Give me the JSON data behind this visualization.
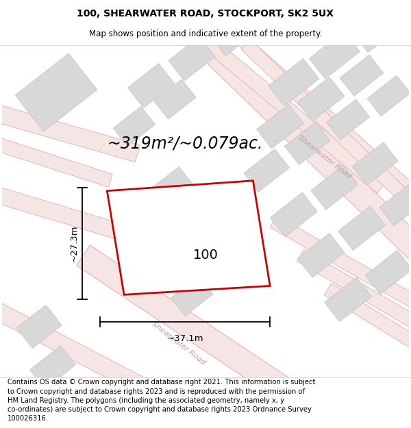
{
  "title": "100, SHEARWATER ROAD, STOCKPORT, SK2 5UX",
  "subtitle": "Map shows position and indicative extent of the property.",
  "footer": "Contains OS data © Crown copyright and database right 2021. This information is subject\nto Crown copyright and database rights 2023 and is reproduced with the permission of\nHM Land Registry. The polygons (including the associated geometry, namely x, y\nco-ordinates) are subject to Crown copyright and database rights 2023 Ordnance Survey\n100026316.",
  "area_label": "~319m²/~0.079ac.",
  "width_label": "~37.1m",
  "height_label": "~27.3m",
  "house_number": "100",
  "map_bg": "#fdf8f8",
  "road_line_color": "#e8aaaa",
  "road_fill_color": "#f5e5e5",
  "building_fill": "#d8d8d8",
  "building_edge": "#c8c0c0",
  "property_color": "#cc0000",
  "title_fontsize": 10,
  "subtitle_fontsize": 8.5,
  "footer_fontsize": 7.2,
  "area_fontsize": 17,
  "dim_fontsize": 9.5,
  "house_fontsize": 14,
  "road_label_color": "#c0a0a0",
  "road_label_fontsize": 8
}
